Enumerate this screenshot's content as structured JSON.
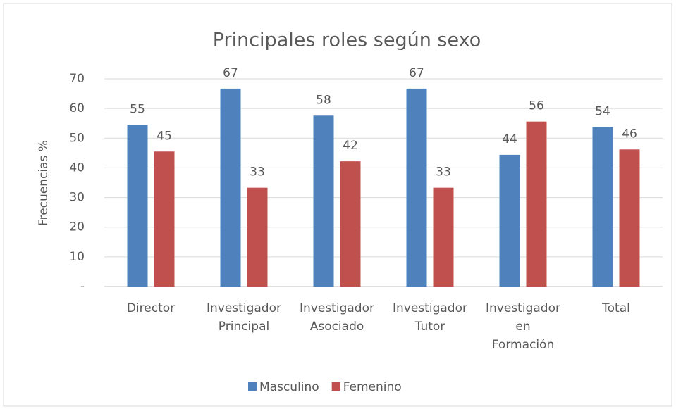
{
  "chart_data": {
    "type": "bar",
    "title": "Principales roles según sexo",
    "y_label": "Frecuencias %",
    "categories": [
      "Director",
      "Investigador Principal",
      "Investigador Asociado",
      "Investigador Tutor",
      "Investigador en Formación",
      "Total"
    ],
    "series": [
      {
        "name": "Masculino",
        "color": "#4f81bd",
        "values": [
          54.5,
          66.7,
          57.6,
          66.7,
          44.4,
          53.8
        ],
        "value_labels": [
          "55",
          "67",
          "58",
          "67",
          "44",
          "54"
        ]
      },
      {
        "name": "Femenino",
        "color": "#c0504d",
        "values": [
          45.5,
          33.3,
          42.2,
          33.3,
          55.6,
          46.2
        ],
        "value_labels": [
          "45",
          "33",
          "42",
          "33",
          "56",
          "46"
        ]
      }
    ],
    "ylim": [
      0,
      70
    ],
    "yticks": [
      {
        "value": 0,
        "label": "-"
      },
      10,
      20,
      30,
      40,
      50,
      60,
      70
    ],
    "grid": true,
    "legend": "bottom"
  }
}
